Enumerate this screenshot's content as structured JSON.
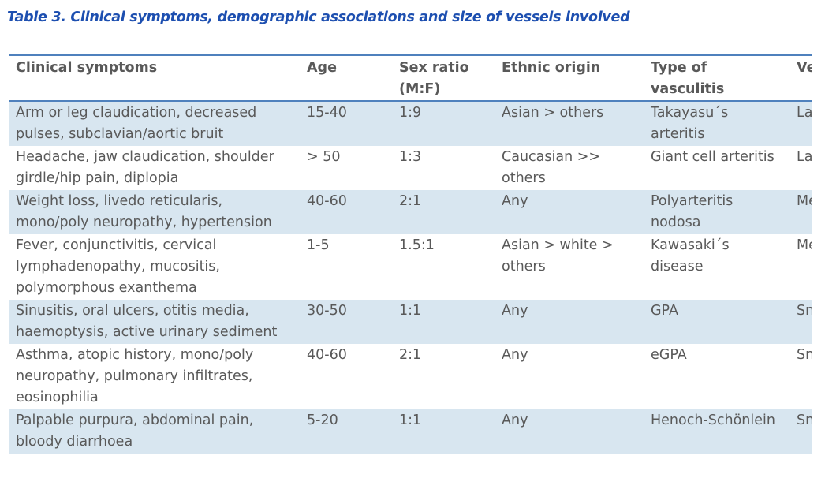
{
  "caption": "Table 3. Clinical symptoms, demographic associations and size of vessels involved",
  "headers": [
    "Clinical symptoms",
    "Age",
    "Sex ratio (M:F)",
    "Ethnic origin",
    "Type of vasculitis",
    "Vessel size"
  ],
  "rows": [
    [
      "Arm or leg claudication, decreased pulses, subclavian/aortic bruit",
      "15-40",
      "1:9",
      "Asian > others",
      "Takayasu´s arteritis",
      "Large"
    ],
    [
      "Headache, jaw claudication, shoulder girdle/hip pain, diplopia",
      "> 50",
      "1:3",
      "Caucasian >> others",
      "Giant cell arteritis",
      "Large"
    ],
    [
      "Weight loss, livedo reticularis, mono/poly neuropathy, hypertension",
      "40-60",
      "2:1",
      "Any",
      "Polyarteritis nodosa",
      "Medium"
    ],
    [
      "Fever, conjunctivitis, cervical lymphadenopathy, mucositis, polymorphous exanthema",
      "1-5",
      "1.5:1",
      "Asian > white > others",
      "Kawasaki´s disease",
      "Medium"
    ],
    [
      "Sinusitis, oral ulcers, otitis media, haemoptysis, active urinary sediment",
      "30-50",
      "1:1",
      "Any",
      "GPA",
      "Small"
    ],
    [
      "Asthma, atopic history, mono/poly neuropathy, pulmonary infiltrates, eosinophilia",
      "40-60",
      "2:1",
      "Any",
      "eGPA",
      "Small"
    ],
    [
      "Palpable purpura, abdominal pain, bloody diarrhoea",
      "5-20",
      "1:1",
      "Any",
      "Henoch-Schönlein",
      "Small"
    ]
  ]
}
